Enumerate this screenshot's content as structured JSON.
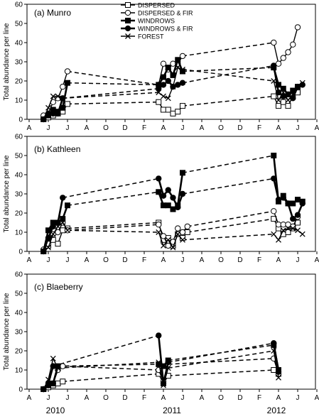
{
  "chart_data": {
    "type": "line",
    "ylabel": "Total abundance per line",
    "x_tick_labels": [
      "A",
      "J",
      "J",
      "A",
      "O",
      "D",
      "F",
      "A",
      "J",
      "A",
      "O",
      "D",
      "F",
      "A",
      "J",
      "A",
      "O"
    ],
    "years": [
      "2010",
      "2011",
      "2012"
    ],
    "legend": [
      {
        "name": "DISPERSED",
        "line": "solid",
        "marker": "square-open"
      },
      {
        "name": "DISPERSED & FIR",
        "line": "solid",
        "marker": "circle-open"
      },
      {
        "name": "WINDROWS",
        "line": "solid-thick",
        "marker": "square-filled"
      },
      {
        "name": "WINDROWS & FIR",
        "line": "solid-thick",
        "marker": "circle-filled"
      },
      {
        "name": "FOREST",
        "line": "solid",
        "marker": "x"
      }
    ],
    "sampling_months": [
      1.5,
      2.0,
      2.5,
      3.0,
      3.5,
      4.0,
      13.5,
      14.0,
      14.5,
      15.0,
      15.5,
      16.0,
      16.5,
      25.5,
      26.0,
      26.5,
      27.0,
      27.5,
      28.0,
      28.5
    ],
    "panels": [
      {
        "title": "(a) Munro",
        "ylim": [
          0,
          60
        ],
        "yticks": [
          0,
          10,
          20,
          30,
          40,
          50,
          60
        ],
        "series": [
          {
            "name": "DISPERSED",
            "segments": [
              [
                0,
                1,
                2,
                3,
                4,
                8
              ],
              [
                9,
                5,
                5,
                3,
                4,
                7
              ],
              [
                12,
                7,
                9,
                7,
                12,
                14
              ]
            ]
          },
          {
            "name": "DISPERSED & FIR",
            "segments": [
              [
                2,
                3,
                9,
                11,
                17,
                25
              ],
              [
                18,
                29,
                26,
                29,
                29,
                33
              ],
              [
                40,
                29,
                32,
                35,
                39,
                48
              ]
            ]
          },
          {
            "name": "WINDROWS",
            "segments": [
              [
                0,
                2,
                5,
                4,
                6,
                19
              ],
              [
                18,
                22,
                27,
                23,
                31,
                25
              ],
              [
                27,
                18,
                16,
                13,
                15,
                17
              ]
            ]
          },
          {
            "name": "WINDROWS & FIR",
            "segments": [
              [
                0,
                3,
                3,
                3,
                11
              ],
              [
                16,
                18,
                20,
                17,
                18,
                19
              ],
              [
                28,
                14,
                12,
                13,
                11,
                17,
                18
              ]
            ]
          },
          {
            "name": "FOREST",
            "segments": [
              [
                0,
                6,
                12,
                12,
                11
              ],
              [
                14,
                12,
                11,
                17,
                27,
                26
              ],
              [
                20,
                10,
                14,
                10,
                13,
                17,
                19
              ]
            ]
          }
        ]
      },
      {
        "title": "(b) Kathleen",
        "ylim": [
          0,
          60
        ],
        "yticks": [
          0,
          10,
          20,
          30,
          40,
          50,
          60
        ],
        "series": [
          {
            "name": "DISPERSED",
            "segments": [
              [
                0,
                3,
                6,
                4,
                11,
                12
              ],
              [
                15,
                6,
                7,
                3,
                9,
                7,
                10
              ],
              [
                17,
                12,
                9,
                10,
                12,
                15
              ]
            ]
          },
          {
            "name": "DISPERSED & FIR",
            "segments": [
              [
                1,
                4,
                9,
                10,
                15,
                11
              ],
              [
                14,
                8,
                3,
                5,
                12,
                10,
                13
              ],
              [
                21,
                14,
                14,
                14,
                13,
                18
              ]
            ]
          },
          {
            "name": "WINDROWS",
            "segments": [
              [
                0,
                11,
                15,
                15,
                17,
                24
              ],
              [
                31,
                24,
                24,
                22,
                24,
                41
              ],
              [
                50,
                26,
                29,
                25,
                25,
                27,
                26
              ]
            ]
          },
          {
            "name": "WINDROWS & FIR",
            "segments": [
              [
                0,
                7,
                13,
                15,
                28
              ],
              [
                38,
                29,
                32,
                28,
                23,
                30
              ],
              [
                38,
                27,
                28,
                25,
                17,
                19,
                25
              ]
            ]
          },
          {
            "name": "FOREST",
            "segments": [
              [
                0,
                2,
                9,
                13,
                15,
                11
              ],
              [
                10,
                3,
                6,
                2,
                9,
                6
              ],
              [
                9,
                6,
                11,
                12,
                12,
                11,
                9
              ]
            ]
          }
        ]
      },
      {
        "title": "(c) Blaeberry",
        "ylim": [
          0,
          60
        ],
        "yticks": [
          0,
          10,
          20,
          30,
          40,
          50,
          60
        ],
        "series": [
          {
            "name": "DISPERSED",
            "segments": [
              [
                0,
                1,
                2,
                3,
                4
              ],
              [
                8,
                3,
                7
              ],
              [
                10,
                8
              ]
            ]
          },
          {
            "name": "DISPERSED & FIR",
            "segments": [
              [
                0,
                2,
                3,
                10,
                12
              ],
              [
                10,
                4,
                13
              ],
              [
                16,
                8
              ]
            ]
          },
          {
            "name": "WINDROWS",
            "segments": [
              [
                0,
                2,
                3,
                12
              ],
              [
                13,
                12,
                15
              ],
              [
                23,
                10
              ]
            ]
          },
          {
            "name": "WINDROWS & FIR",
            "segments": [
              [
                0,
                3,
                12
              ],
              [
                28,
                3,
                14
              ],
              [
                24,
                9
              ]
            ]
          },
          {
            "name": "FOREST",
            "segments": [
              [
                0,
                5,
                16,
                11
              ],
              [
                14,
                2,
                11
              ],
              [
                20,
                6
              ]
            ]
          }
        ]
      }
    ]
  }
}
